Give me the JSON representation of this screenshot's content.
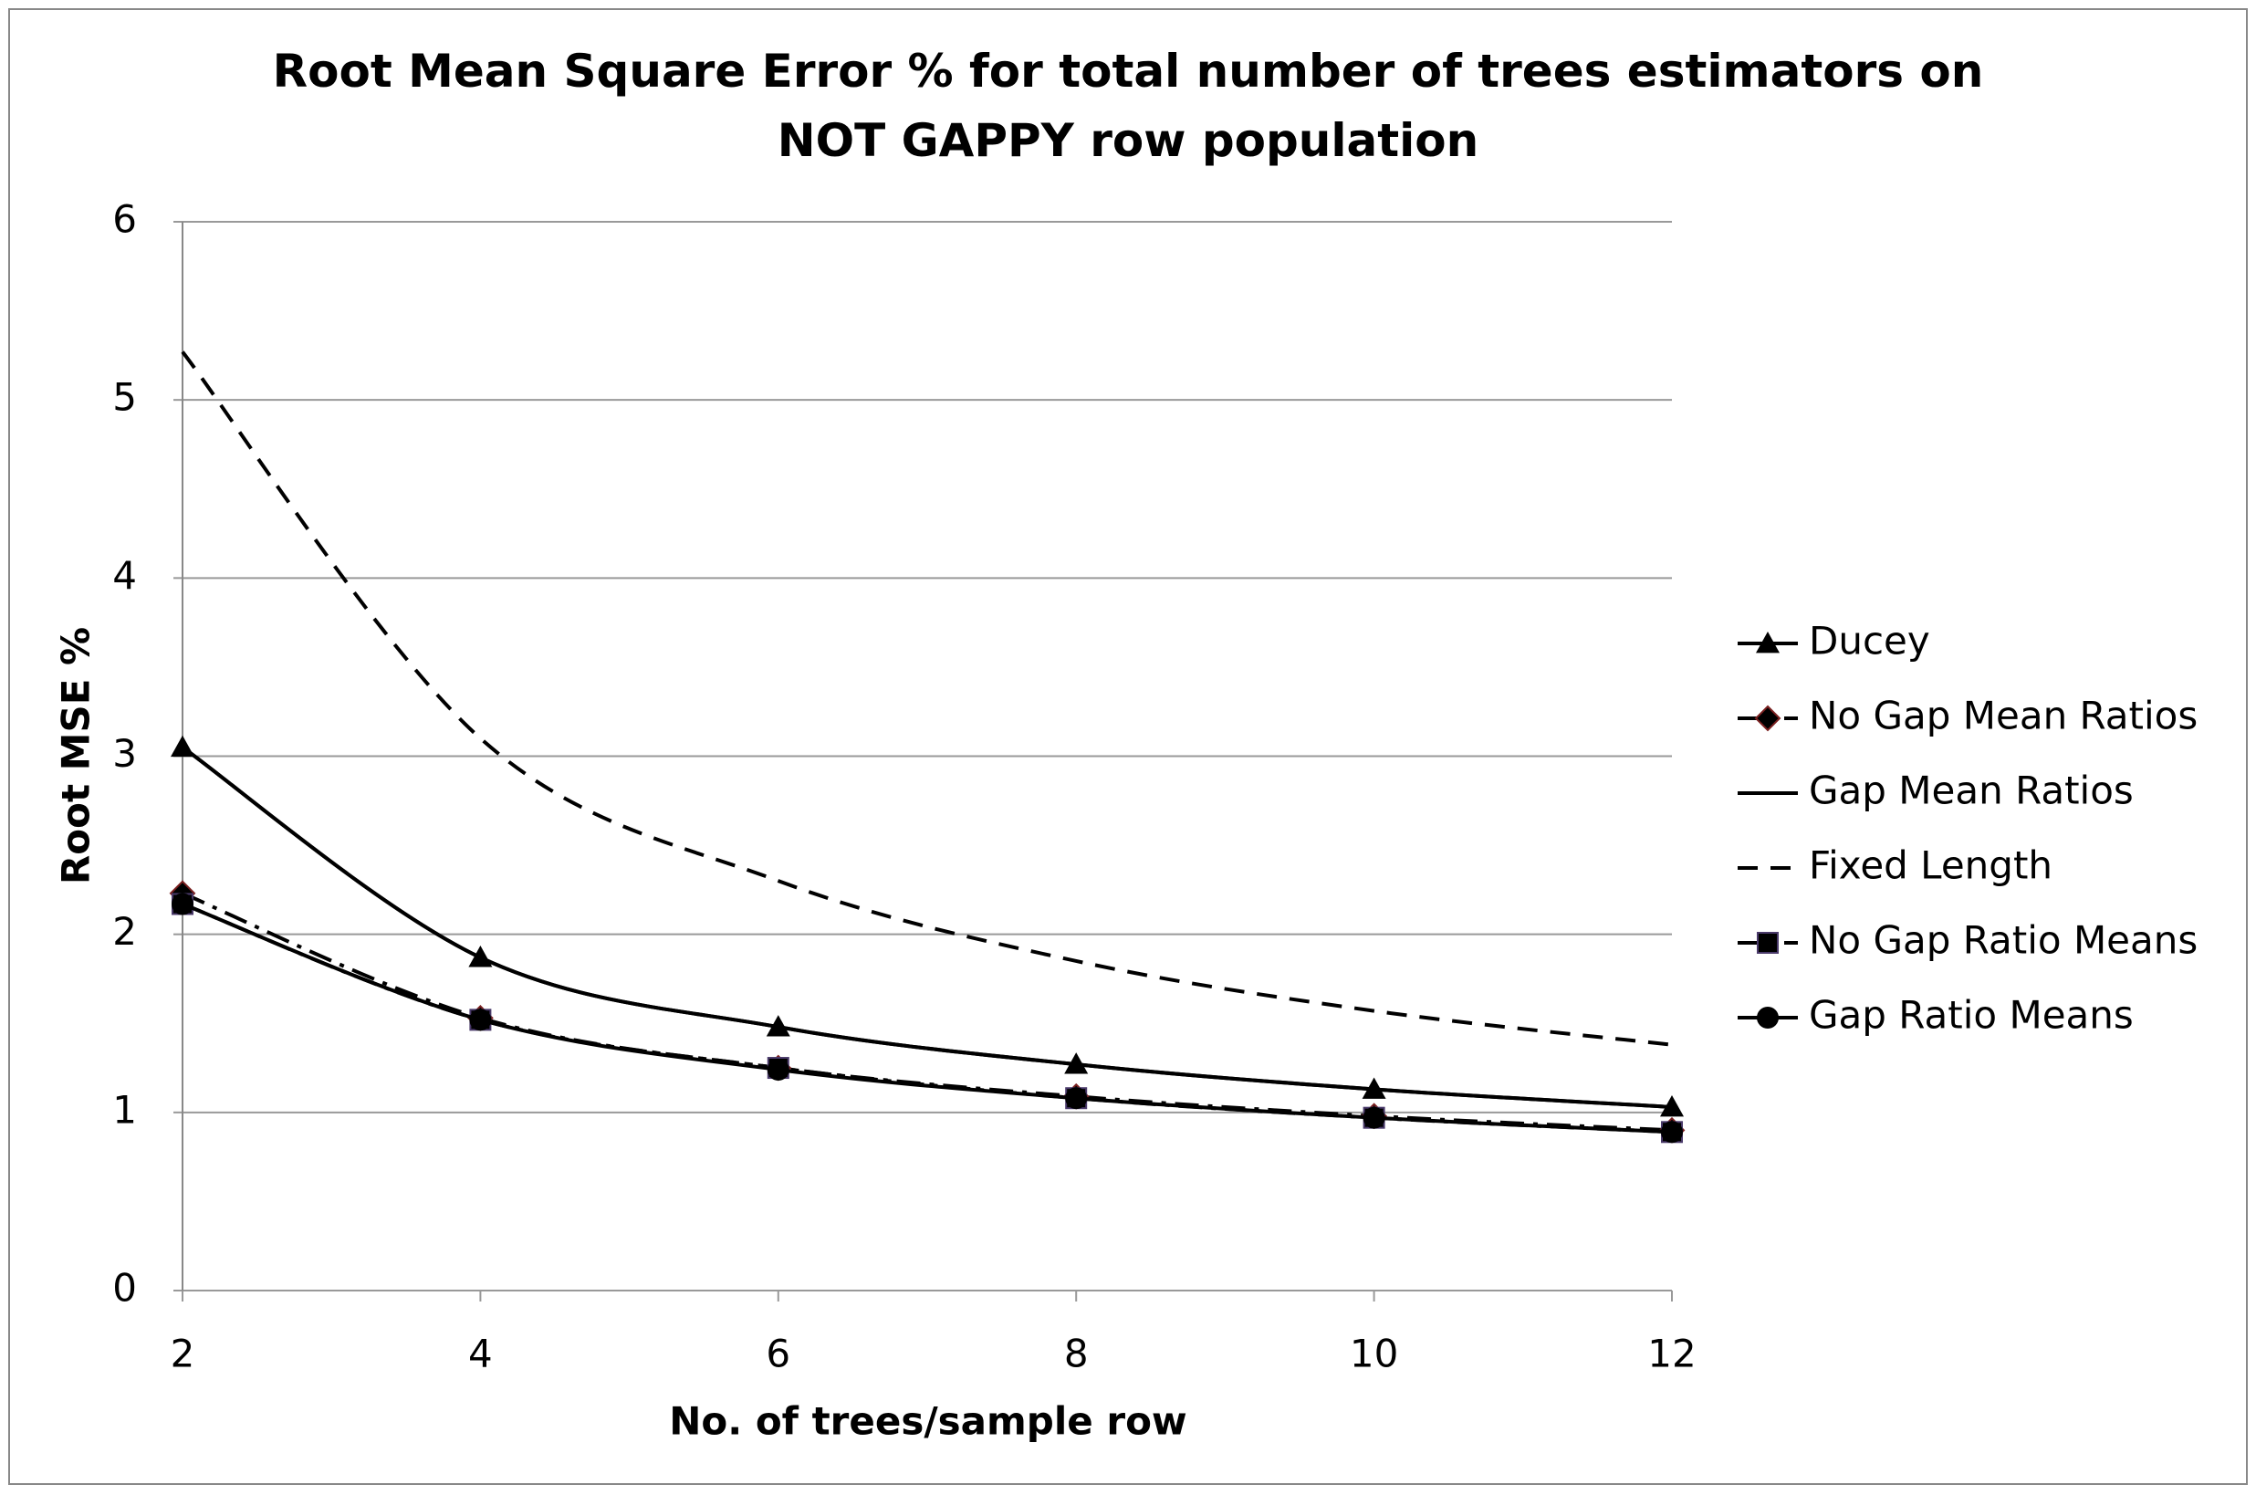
{
  "chart_data": {
    "type": "line",
    "title": "Root Mean Square Error % for total number of trees estimators on NOT GAPPY row population",
    "x_label": "No. of trees/sample row",
    "y_label": "Root MSE %",
    "x": [
      2,
      4,
      6,
      8,
      10,
      12
    ],
    "xlim": [
      2,
      12
    ],
    "xticks": [
      2,
      4,
      6,
      8,
      10,
      12
    ],
    "ylim": [
      0,
      6
    ],
    "yticks": [
      0,
      1,
      2,
      3,
      4,
      5,
      6
    ],
    "grid": true,
    "legend": "right",
    "series": [
      {
        "name": "Ducey",
        "color": "#000000",
        "style": "solid",
        "marker": "triangle",
        "values": [
          3.05,
          1.87,
          1.48,
          1.27,
          1.13,
          1.03
        ]
      },
      {
        "name": "No Gap Mean Ratios",
        "color": "#000000",
        "style": "dashdot",
        "marker": "diamond",
        "values": [
          2.23,
          1.53,
          1.25,
          1.09,
          0.98,
          0.9
        ]
      },
      {
        "name": "Gap Mean Ratios",
        "color": "#000000",
        "style": "solid",
        "marker": "none",
        "values": [
          3.05,
          1.87,
          1.48,
          1.27,
          1.13,
          1.03
        ]
      },
      {
        "name": "Fixed Length",
        "color": "#000000",
        "style": "dashed",
        "marker": "none",
        "values": [
          5.27,
          3.1,
          2.3,
          1.85,
          1.57,
          1.38
        ]
      },
      {
        "name": "No Gap Ratio Means",
        "color": "#000000",
        "style": "dashdot",
        "marker": "square",
        "values": [
          2.17,
          1.52,
          1.25,
          1.08,
          0.97,
          0.89
        ]
      },
      {
        "name": "Gap Ratio Means",
        "color": "#000000",
        "style": "solid",
        "marker": "circle",
        "values": [
          2.17,
          1.52,
          1.24,
          1.08,
          0.97,
          0.89
        ]
      }
    ]
  }
}
